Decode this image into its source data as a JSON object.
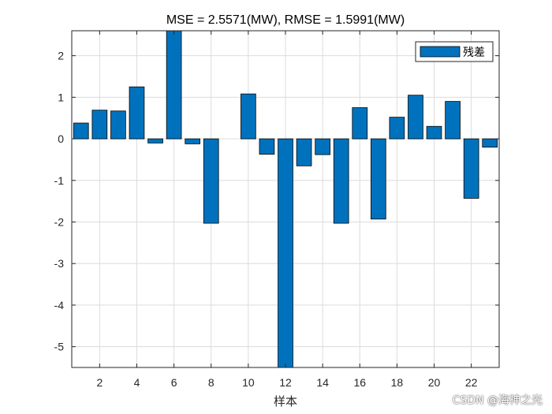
{
  "chart_data": {
    "type": "bar",
    "title": "MSE = 2.5571(MW), RMSE = 1.5991(MW)",
    "xlabel": "样本",
    "ylabel": "",
    "x": [
      1,
      2,
      3,
      4,
      5,
      6,
      7,
      8,
      9,
      10,
      11,
      12,
      13,
      14,
      15,
      16,
      17,
      18,
      19,
      20,
      21,
      22,
      23
    ],
    "series": [
      {
        "name": "残差",
        "color": "#0072bd",
        "values": [
          0.38,
          0.69,
          0.67,
          1.25,
          -0.1,
          2.62,
          -0.12,
          -2.03,
          0,
          1.08,
          -0.37,
          -5.6,
          -0.65,
          -0.38,
          -2.03,
          0.75,
          -1.93,
          0.52,
          1.05,
          0.3,
          0.9,
          -1.43,
          -0.2
        ]
      }
    ],
    "xlim": [
      0.5,
      23.5
    ],
    "ylim": [
      -5.5,
      2.6
    ],
    "xticks": [
      2,
      4,
      6,
      8,
      10,
      12,
      14,
      16,
      18,
      20,
      22
    ],
    "yticks": [
      -5,
      -4,
      -3,
      -2,
      -1,
      0,
      1,
      2
    ],
    "grid": true,
    "legend_position": "top-right"
  },
  "watermark": "CSDN @海神之光"
}
